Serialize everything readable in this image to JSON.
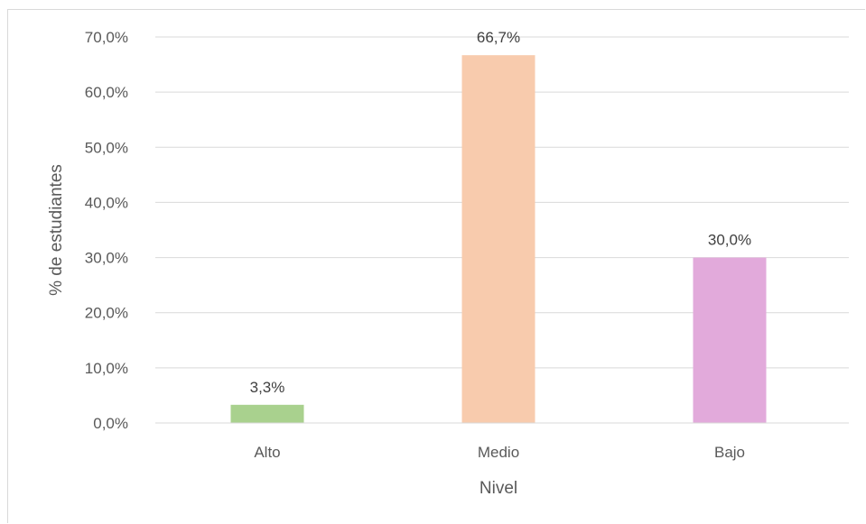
{
  "chart_data": {
    "type": "bar",
    "title": "",
    "xlabel": "Nivel",
    "ylabel": "% de estudiantes",
    "categories": [
      "Alto",
      "Medio",
      "Bajo"
    ],
    "values": [
      3.3,
      66.7,
      30.0
    ],
    "value_labels": [
      "3,3%",
      "66,7%",
      "30,0%"
    ],
    "colors": [
      "#a9d18e",
      "#f8cbad",
      "#e2aadb"
    ],
    "ylim": [
      0,
      70
    ],
    "yticks": [
      0,
      10,
      20,
      30,
      40,
      50,
      60,
      70
    ],
    "ytick_labels": [
      "0,0%",
      "10,0%",
      "20,0%",
      "30,0%",
      "40,0%",
      "50,0%",
      "60,0%",
      "70,0%"
    ],
    "grid": true,
    "legend": "none",
    "gridline_color": "#d9d9d9",
    "axis_color": "#d9d9d9"
  }
}
